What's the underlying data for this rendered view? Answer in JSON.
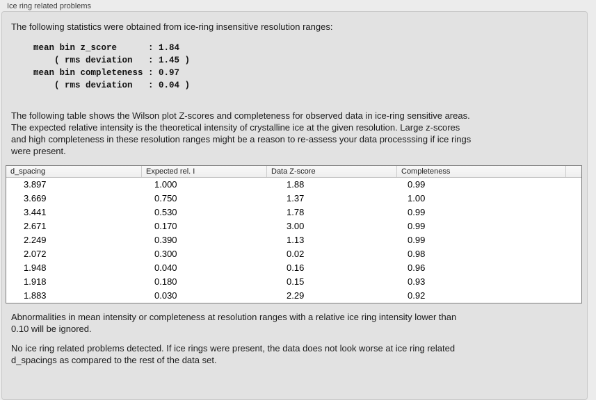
{
  "group": {
    "title": "Ice ring related problems"
  },
  "intro": {
    "text": "The following statistics were obtained from ice-ring insensitive resolution ranges:",
    "stats_block": "mean bin z_score      : 1.84\n    ( rms deviation   : 1.45 )\nmean bin completeness : 0.97\n    ( rms deviation   : 0.04 )"
  },
  "description": {
    "text": "The following table shows the Wilson plot Z-scores and completeness for observed data in ice-ring sensitive areas.\nThe expected relative intensity is the theoretical intensity of crystalline ice at the given resolution. Large z-scores\nand high completeness in these resolution ranges might be a reason to re-assess your data processsing if ice rings\nwere present."
  },
  "table": {
    "columns": [
      "d_spacing",
      "Expected rel. I",
      "Data Z-score",
      "Completeness"
    ],
    "rows": [
      [
        "3.897",
        "1.000",
        "1.88",
        "0.99"
      ],
      [
        "3.669",
        "0.750",
        "1.37",
        "1.00"
      ],
      [
        "3.441",
        "0.530",
        "1.78",
        "0.99"
      ],
      [
        "2.671",
        "0.170",
        "3.00",
        "0.99"
      ],
      [
        "2.249",
        "0.390",
        "1.13",
        "0.99"
      ],
      [
        "2.072",
        "0.300",
        "0.02",
        "0.98"
      ],
      [
        "1.948",
        "0.040",
        "0.16",
        "0.96"
      ],
      [
        "1.918",
        "0.180",
        "0.15",
        "0.93"
      ],
      [
        "1.883",
        "0.030",
        "2.29",
        "0.92"
      ]
    ]
  },
  "notes": {
    "ignore_note": "Abnormalities in mean intensity or completeness at resolution ranges with a relative ice ring intensity lower than\n0.10 will be ignored.",
    "conclusion": "No ice ring related problems detected. If ice rings were present, the data does not look worse at ice ring related\nd_spacings as compared to the rest of the data set."
  },
  "colors": {
    "window_bg": "#ececec",
    "panel_bg": "#e2e2e2",
    "panel_border": "#c8c8c8",
    "table_bg": "#ffffff",
    "table_border": "#7a7a7a",
    "header_gradient_top": "#f9f9f9",
    "header_gradient_bottom": "#eeeeee",
    "text": "#1b1b1b"
  }
}
